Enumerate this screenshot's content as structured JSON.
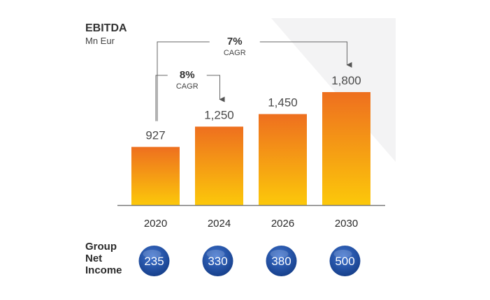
{
  "title": "EBITDA",
  "subtitle": "Mn Eur",
  "chart_data": {
    "type": "bar",
    "categories": [
      "2020",
      "2024",
      "2026",
      "2030"
    ],
    "values": [
      927,
      1250,
      1450,
      1800
    ],
    "value_labels": [
      "927",
      "1,250",
      "1,450",
      "1,800"
    ],
    "ylim": [
      0,
      1900
    ],
    "grid": false,
    "bar_gradient": {
      "top": "#ee6f1f",
      "bottom": "#fcc80a"
    }
  },
  "cagr": [
    {
      "rate": "8%",
      "label": "CAGR",
      "from": "2020",
      "to": "2024"
    },
    {
      "rate": "7%",
      "label": "CAGR",
      "from": "2020",
      "to": "2030"
    }
  ],
  "group_net_income": {
    "label_lines": [
      "Group",
      "Net",
      "Income"
    ],
    "values": [
      "235",
      "330",
      "380",
      "500"
    ],
    "circle_color": "#1f4fa8"
  }
}
